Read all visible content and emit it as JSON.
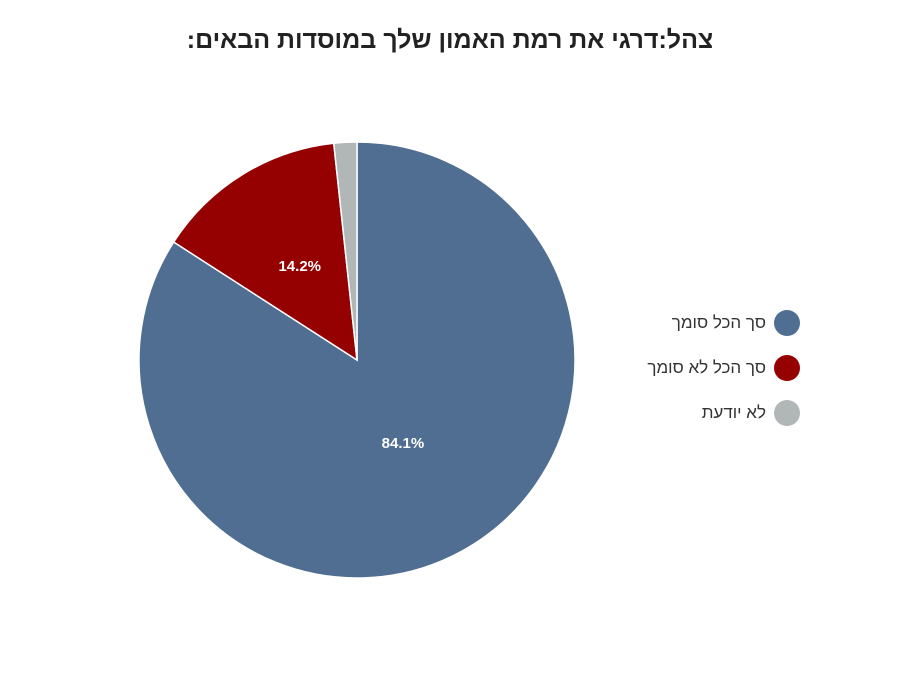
{
  "chart_data": {
    "type": "pie",
    "title": "צהל:דרגי את רמת האמון שלך במוסדות הבאים:",
    "categories": [
      "סך הכל סומך",
      "סך הכל לא סומך",
      "לא יודעת"
    ],
    "values": [
      84.1,
      14.2,
      1.7
    ],
    "data_labels": [
      "84.1%",
      "14.2%",
      ""
    ],
    "colors": [
      "#506e91",
      "#950000",
      "#b1b6b7"
    ],
    "legend_position": "right"
  }
}
